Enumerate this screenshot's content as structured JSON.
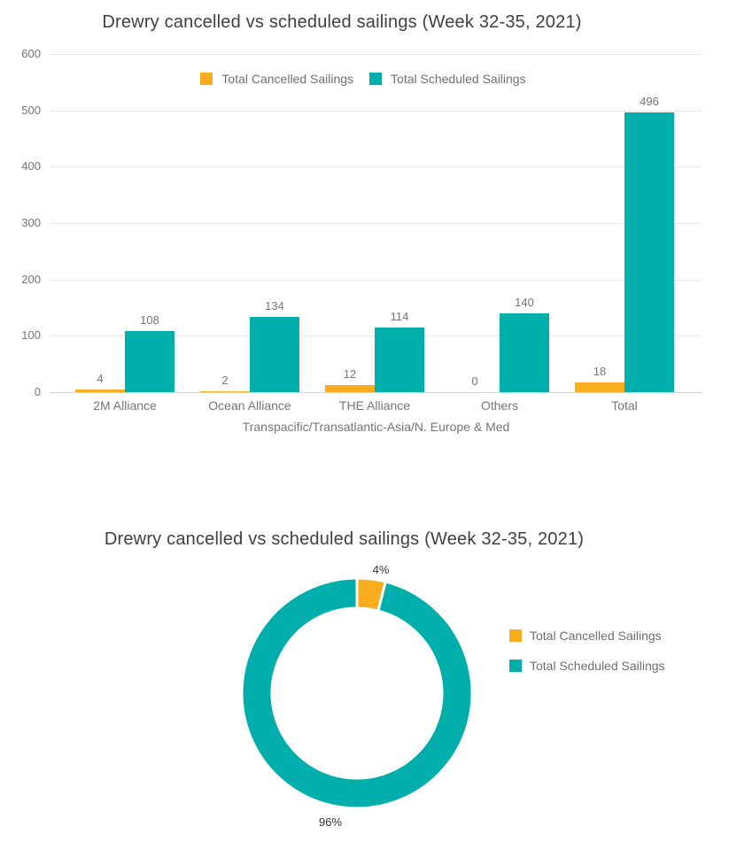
{
  "page": {
    "background": "#ffffff"
  },
  "colors": {
    "cancelled": "#F9AD1E",
    "scheduled": "#00AEAC",
    "gridline": "#e6e6e6",
    "title_text": "#404040",
    "axis_text": "#757575"
  },
  "chart_data": [
    {
      "type": "bar",
      "title": "Drewry cancelled vs scheduled sailings (Week 32-35, 2021)",
      "categories": [
        "2M Alliance",
        "Ocean Alliance",
        "THE Alliance",
        "Others",
        "Total"
      ],
      "series": [
        {
          "name": "Total Cancelled Sailings",
          "color": "#F9AD1E",
          "values": [
            4,
            2,
            12,
            0,
            18
          ]
        },
        {
          "name": "Total Scheduled Sailings",
          "color": "#00AEAC",
          "values": [
            108,
            134,
            114,
            140,
            496
          ]
        }
      ],
      "xlabel": "Transpacific/Transatlantic-Asia/N. Europe & Med",
      "ylabel": "",
      "ylim": [
        0,
        600
      ],
      "yticks": [
        0,
        100,
        200,
        300,
        400,
        500,
        600
      ],
      "grid": true,
      "legend_position": "top-center",
      "data_labels": true
    },
    {
      "type": "pie",
      "subtype": "donut",
      "title": "Drewry cancelled vs scheduled sailings (Week 32-35, 2021)",
      "slices": [
        {
          "name": "Total Cancelled Sailings",
          "value_pct": 4,
          "label": "4%",
          "color": "#F9AD1E"
        },
        {
          "name": "Total Scheduled Sailings",
          "value_pct": 96,
          "label": "96%",
          "color": "#00AEAC"
        }
      ],
      "start_angle_deg": 0,
      "legend_position": "right"
    }
  ]
}
